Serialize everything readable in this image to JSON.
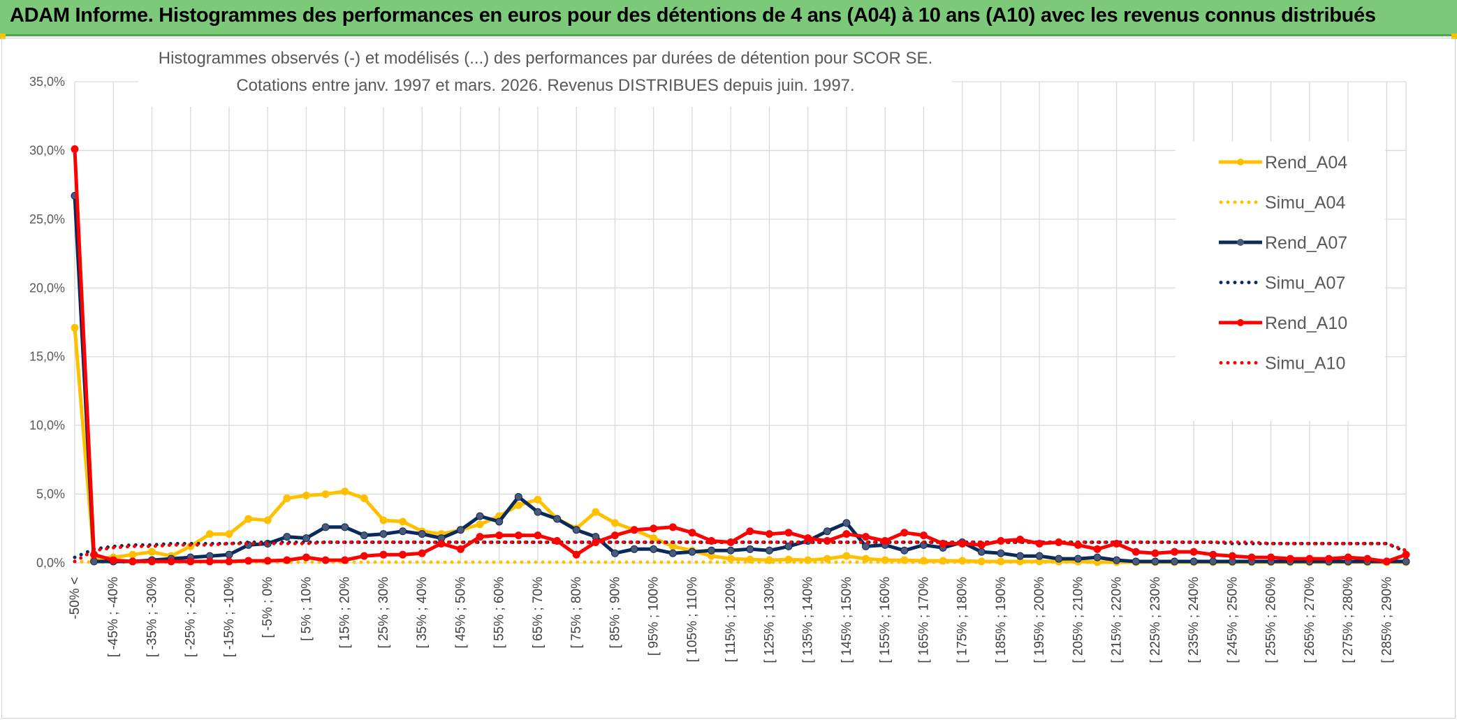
{
  "header": {
    "title": "ADAM Informe. Histogrammes des performances en euros pour des détentions de 4 ans (A04) à 10 ans (A10) avec les revenus connus distribués"
  },
  "colors": {
    "header_bg": "#7dc97a",
    "a04": "#ffc000",
    "a07": "#0b2a5c",
    "a10": "#ff0000",
    "grid": "#d9d9d9"
  },
  "chart_data": {
    "type": "line",
    "title_lines": [
      "Histogrammes observés (-) et modélisés (...) des performances par durées de détention pour SCOR SE.",
      "Cotations entre janv. 1997 et mars. 2026. Revenus DISTRIBUES depuis juin. 1997."
    ],
    "xlabel": "",
    "ylabel": "",
    "ylim": [
      0,
      35
    ],
    "yticks": [
      "0,0%",
      "5,0%",
      "10,0%",
      "15,0%",
      "20,0%",
      "25,0%",
      "30,0%",
      "35,0%"
    ],
    "x_tick_labels": [
      "-50% <",
      "[ -45% ; -40%",
      "[ -35% ; -30%",
      "[ -25% ; -20%",
      "[ -15% ; -10%",
      "[ -5% ; 0%",
      "[ 5% ; 10%",
      "[ 15% ; 20%",
      "[ 25% ; 30%",
      "[ 35% ; 40%",
      "[ 45% ; 50%",
      "[ 55% ; 60%",
      "[ 65% ; 70%",
      "[ 75% ; 80%",
      "[ 85% ; 90%",
      "[ 95% ; 100%",
      "[ 105% ; 110%",
      "[ 115% ; 120%",
      "[ 125% ; 130%",
      "[ 135% ; 140%",
      "[ 145% ; 150%",
      "[ 155% ; 160%",
      "[ 165% ; 170%",
      "[ 175% ; 180%",
      "[ 185% ; 190%",
      "[ 195% ; 200%",
      "[ 205% ; 210%",
      "[ 215% ; 220%",
      "[ 225% ; 230%",
      "[ 235% ; 240%",
      "[ 245% ; 250%",
      "[ 255% ; 260%",
      "[ 265% ; 270%",
      "[ 275% ; 280%",
      "[ 285% ; 290%"
    ],
    "n_points": 70,
    "legend_position": "right",
    "series": [
      {
        "name": "Rend_A04",
        "style": "solid",
        "color": "#ffc000",
        "values": [
          17.1,
          0.3,
          0.4,
          0.6,
          0.8,
          0.5,
          1.2,
          2.1,
          2.1,
          3.2,
          3.1,
          4.7,
          4.9,
          5.0,
          5.2,
          4.7,
          3.1,
          3.0,
          2.3,
          2.1,
          2.4,
          2.8,
          3.4,
          4.2,
          4.6,
          3.2,
          2.5,
          3.7,
          2.9,
          2.4,
          1.8,
          1.2,
          0.9,
          0.5,
          0.3,
          0.25,
          0.2,
          0.25,
          0.2,
          0.3,
          0.5,
          0.3,
          0.2,
          0.2,
          0.15,
          0.15,
          0.15,
          0.1,
          0.1,
          0.1,
          0.1,
          0.1,
          0.1,
          0.05,
          0.05,
          0.05,
          0.05,
          0.05,
          0.05,
          0.05,
          0.05,
          0.05,
          0.05,
          0.05,
          0.05,
          0.05,
          0.05,
          0.05,
          0.05,
          0.05
        ]
      },
      {
        "name": "Simu_A04",
        "style": "dotted",
        "color": "#ffc000",
        "values": [
          0.1,
          0.05,
          0.05,
          0.05,
          0.05,
          0.05,
          0.05,
          0.05,
          0.05,
          0.05,
          0.05,
          0.05,
          0.05,
          0.05,
          0.05,
          0.05,
          0.05,
          0.05,
          0.05,
          0.05,
          0.05,
          0.05,
          0.05,
          0.05,
          0.05,
          0.05,
          0.05,
          0.05,
          0.05,
          0.05,
          0.05,
          0.05,
          0.05,
          0.05,
          0.05,
          0.05,
          0.05,
          0.05,
          0.05,
          0.05,
          0.05,
          0.05,
          0.05,
          0.05,
          0.05,
          0.05,
          0.05,
          0.05,
          0.05,
          0.05,
          0.05,
          0.05,
          0.05,
          0.05,
          0.05,
          0.05,
          0.05,
          0.05,
          0.05,
          0.05,
          0.05,
          0.05,
          0.05,
          0.05,
          0.05,
          0.05,
          0.05,
          0.05,
          0.05,
          0.05
        ]
      },
      {
        "name": "Rend_A07",
        "style": "solid",
        "color": "#0b2a5c",
        "values": [
          26.7,
          0.1,
          0.1,
          0.1,
          0.2,
          0.3,
          0.4,
          0.5,
          0.6,
          1.3,
          1.4,
          1.9,
          1.8,
          2.6,
          2.6,
          2.0,
          2.1,
          2.3,
          2.1,
          1.8,
          2.4,
          3.4,
          3.0,
          4.8,
          3.7,
          3.2,
          2.4,
          1.9,
          0.7,
          1.0,
          1.0,
          0.7,
          0.8,
          0.9,
          0.9,
          1.0,
          0.9,
          1.2,
          1.6,
          2.3,
          2.9,
          1.2,
          1.3,
          0.9,
          1.3,
          1.1,
          1.5,
          0.8,
          0.7,
          0.5,
          0.5,
          0.3,
          0.3,
          0.4,
          0.2,
          0.1,
          0.1,
          0.1,
          0.1,
          0.1,
          0.1,
          0.1,
          0.1,
          0.1,
          0.1,
          0.1,
          0.1,
          0.1,
          0.1,
          0.1
        ]
      },
      {
        "name": "Simu_A07",
        "style": "dotted",
        "color": "#0b2a5c",
        "values": [
          0.4,
          1.0,
          1.2,
          1.3,
          1.3,
          1.4,
          1.4,
          1.4,
          1.4,
          1.5,
          1.5,
          1.5,
          1.5,
          1.5,
          1.5,
          1.5,
          1.5,
          1.5,
          1.5,
          1.5,
          1.5,
          1.5,
          1.5,
          1.5,
          1.5,
          1.5,
          1.5,
          1.5,
          1.5,
          1.5,
          1.5,
          1.5,
          1.5,
          1.5,
          1.5,
          1.5,
          1.5,
          1.5,
          1.5,
          1.5,
          1.5,
          1.5,
          1.5,
          1.5,
          1.5,
          1.5,
          1.5,
          1.5,
          1.5,
          1.5,
          1.5,
          1.5,
          1.5,
          1.5,
          1.5,
          1.5,
          1.5,
          1.5,
          1.5,
          1.5,
          1.4,
          1.4,
          1.4,
          1.4,
          1.4,
          1.4,
          1.4,
          1.4,
          1.4,
          0.8
        ]
      },
      {
        "name": "Rend_A10",
        "style": "solid",
        "color": "#ff0000",
        "values": [
          30.1,
          0.6,
          0.2,
          0.1,
          0.1,
          0.1,
          0.1,
          0.1,
          0.1,
          0.15,
          0.15,
          0.2,
          0.4,
          0.2,
          0.2,
          0.5,
          0.6,
          0.6,
          0.7,
          1.4,
          1.0,
          1.9,
          2.0,
          2.0,
          2.0,
          1.6,
          0.6,
          1.5,
          2.0,
          2.4,
          2.5,
          2.6,
          2.2,
          1.6,
          1.5,
          2.3,
          2.1,
          2.2,
          1.8,
          1.6,
          2.1,
          1.9,
          1.6,
          2.2,
          2.0,
          1.4,
          1.4,
          1.3,
          1.6,
          1.7,
          1.4,
          1.5,
          1.3,
          1.0,
          1.4,
          0.8,
          0.7,
          0.8,
          0.8,
          0.6,
          0.5,
          0.4,
          0.4,
          0.3,
          0.3,
          0.3,
          0.4,
          0.3,
          0.1,
          0.6
        ]
      },
      {
        "name": "Simu_A10",
        "style": "dotted",
        "color": "#ff0000",
        "values": [
          0.1,
          0.9,
          1.1,
          1.2,
          1.2,
          1.3,
          1.3,
          1.3,
          1.4,
          1.4,
          1.4,
          1.4,
          1.4,
          1.5,
          1.5,
          1.5,
          1.5,
          1.5,
          1.5,
          1.5,
          1.5,
          1.5,
          1.5,
          1.5,
          1.5,
          1.5,
          1.5,
          1.5,
          1.5,
          1.5,
          1.5,
          1.5,
          1.5,
          1.5,
          1.5,
          1.5,
          1.5,
          1.5,
          1.5,
          1.5,
          1.5,
          1.5,
          1.5,
          1.5,
          1.5,
          1.5,
          1.5,
          1.5,
          1.5,
          1.5,
          1.5,
          1.5,
          1.5,
          1.5,
          1.5,
          1.5,
          1.5,
          1.5,
          1.5,
          1.5,
          1.5,
          1.5,
          1.4,
          1.4,
          1.4,
          1.4,
          1.4,
          1.4,
          1.4,
          0.9
        ]
      }
    ]
  }
}
